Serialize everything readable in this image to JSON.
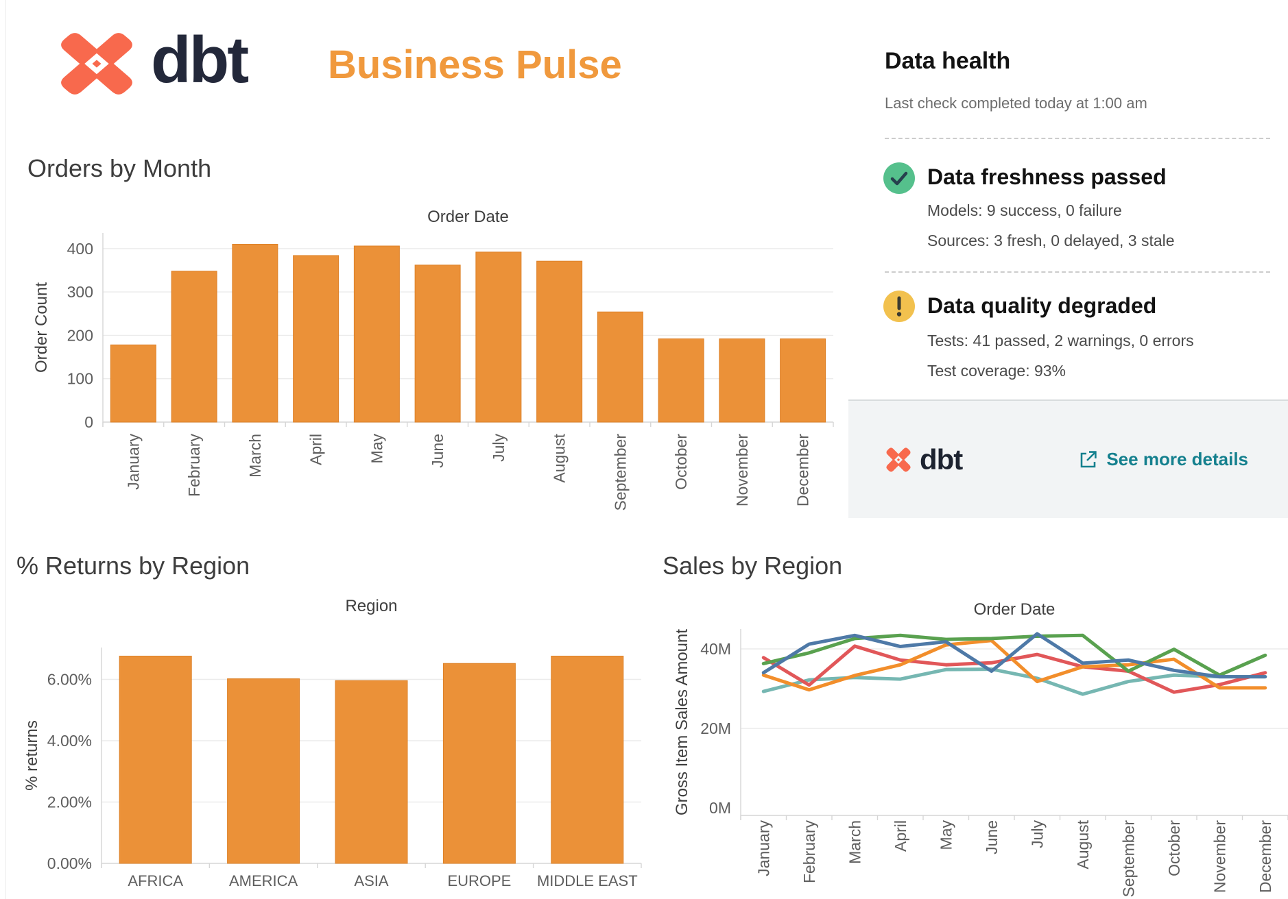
{
  "header": {
    "brand": "dbt",
    "title": "Business Pulse"
  },
  "colors": {
    "brand_coral": "#F8694D",
    "brand_navy": "#23283A",
    "title_orange": "#F0993D",
    "link_teal": "#15808E",
    "success_green": "#55C08C",
    "warning_yellow": "#F2C14E"
  },
  "data_health": {
    "title": "Data health",
    "subtitle": "Last check completed today at 1:00 am",
    "statuses": [
      {
        "icon": "check-circle",
        "icon_color": "#55C08C",
        "title": "Data freshness passed",
        "details": [
          "Models: 9 success, 0 failure",
          "Sources: 3 fresh, 0 delayed, 3 stale"
        ]
      },
      {
        "icon": "warning-circle",
        "icon_color": "#F2C14E",
        "title": "Data quality degraded",
        "details": [
          "Tests: 41 passed, 2 warnings, 0 errors",
          "Test coverage: 93%"
        ]
      }
    ],
    "footer": {
      "brand": "dbt",
      "link_label": "See more details"
    }
  },
  "chart_data": [
    {
      "type": "bar",
      "title": "Orders by Month",
      "top_axis_label": "Order Date",
      "xlabel": "",
      "ylabel": "Order Count",
      "categories": [
        "January",
        "February",
        "March",
        "April",
        "May",
        "June",
        "July",
        "August",
        "September",
        "October",
        "November",
        "December"
      ],
      "values": [
        178,
        348,
        410,
        384,
        406,
        362,
        392,
        371,
        254,
        192,
        192,
        192
      ],
      "yticks": [
        {
          "v": 0,
          "label": "0"
        },
        {
          "v": 100,
          "label": "100"
        },
        {
          "v": 200,
          "label": "200"
        },
        {
          "v": 300,
          "label": "300"
        },
        {
          "v": 400,
          "label": "400"
        }
      ],
      "ylim": [
        0,
        436
      ],
      "grid": true,
      "legend": "none",
      "bar_color": "#EB9138",
      "bar_stroke": "#DD8127"
    },
    {
      "type": "bar",
      "title": "% Returns by Region",
      "top_axis_label": "Region",
      "xlabel": "",
      "ylabel": "% returns",
      "categories": [
        "AFRICA",
        "AMERICA",
        "ASIA",
        "EUROPE",
        "MIDDLE EAST"
      ],
      "values": [
        6.76,
        6.02,
        5.96,
        6.52,
        6.76
      ],
      "yticks": [
        {
          "v": 0,
          "label": "0.00%"
        },
        {
          "v": 2,
          "label": "2.00%"
        },
        {
          "v": 4,
          "label": "4.00%"
        },
        {
          "v": 6,
          "label": "6.00%"
        }
      ],
      "ylim": [
        0,
        7.0
      ],
      "grid": true,
      "legend": "none",
      "bar_color": "#EB9138",
      "bar_stroke": "#DD8127"
    },
    {
      "type": "line",
      "title": "Sales by Region",
      "top_axis_label": "Order Date",
      "xlabel": "",
      "ylabel": "Gross Item Sales Amount",
      "categories": [
        "January",
        "February",
        "March",
        "April",
        "May",
        "June",
        "July",
        "August",
        "September",
        "October",
        "November",
        "December"
      ],
      "unit": "M",
      "series": [
        {
          "name": "teal",
          "color": "#76B7B2",
          "values": [
            29.3,
            32.2,
            32.8,
            32.4,
            34.8,
            34.9,
            32.6,
            28.6,
            31.8,
            33.4,
            33.0,
            33.0
          ]
        },
        {
          "name": "red",
          "color": "#E15759",
          "values": [
            37.8,
            30.9,
            40.7,
            37.2,
            36.0,
            36.5,
            38.6,
            35.5,
            34.4,
            29.1,
            31.0,
            34.0
          ]
        },
        {
          "name": "orange",
          "color": "#F28E2B",
          "values": [
            33.4,
            29.7,
            33.3,
            36.0,
            41.0,
            42.1,
            31.8,
            35.5,
            36.0,
            37.4,
            30.2,
            30.2
          ]
        },
        {
          "name": "green",
          "color": "#59A14F",
          "values": [
            36.3,
            39.0,
            42.6,
            43.4,
            42.4,
            42.6,
            43.2,
            43.4,
            34.4,
            39.9,
            33.4,
            38.4
          ]
        },
        {
          "name": "blue",
          "color": "#4E79A7",
          "values": [
            34.0,
            41.2,
            43.4,
            40.6,
            41.8,
            34.4,
            43.8,
            36.4,
            37.2,
            34.6,
            33.0,
            33.0
          ]
        }
      ],
      "yticks": [
        {
          "v": 0,
          "label": "0M"
        },
        {
          "v": 20,
          "label": "20M"
        },
        {
          "v": 40,
          "label": "40M"
        }
      ],
      "ylim": [
        0,
        45
      ],
      "grid": true,
      "legend": "none"
    }
  ]
}
